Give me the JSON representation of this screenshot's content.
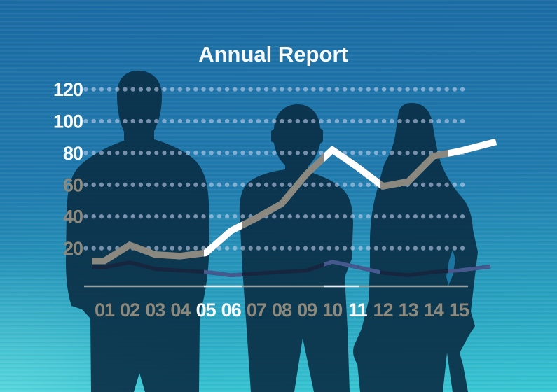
{
  "title": "Annual Report",
  "chart_data": {
    "type": "line",
    "title": "Annual Report",
    "categories": [
      "01",
      "02",
      "03",
      "04",
      "05",
      "06",
      "07",
      "08",
      "09",
      "10",
      "11",
      "12",
      "13",
      "14",
      "15"
    ],
    "x_highlight_white": [
      "05",
      "06",
      "11"
    ],
    "y_ticks": [
      20,
      40,
      60,
      80,
      100,
      120
    ],
    "y_ticks_white": [
      80,
      100,
      120
    ],
    "ylim": [
      0,
      130
    ],
    "grid": "dotted-horizontal-rows",
    "legend": "none",
    "series": [
      {
        "name": "main-growth-line",
        "values": [
          12,
          22,
          16,
          15,
          17,
          31,
          39,
          48,
          67,
          82,
          71,
          59,
          62,
          78,
          81
        ],
        "lead_value": 12,
        "end_value": 87,
        "thickness": "thick",
        "color_over_gap": "#ffffff",
        "color_over_figure": "#8b897f"
      },
      {
        "name": "secondary-flat-line",
        "values": [
          8,
          11,
          7,
          6,
          5,
          3,
          4,
          5,
          6,
          11.5,
          8,
          4.5,
          3,
          5,
          6
        ],
        "lead_value": 8,
        "end_value": 8.5,
        "thickness": "thin",
        "color_over_gap": "#46598e",
        "color_over_figure": "#17263f"
      }
    ]
  },
  "scene": {
    "figures": [
      {
        "name": "businessman-left"
      },
      {
        "name": "businessman-center"
      },
      {
        "name": "businesswoman-right"
      }
    ]
  },
  "colors": {
    "bg_top": "#1a6ba3",
    "bg_bottom": "#38c8d4",
    "silhouette": "#0a2e45",
    "dot": "rgba(198,211,237,0.58)",
    "label_gray": "#8d897c",
    "label_white": "#f7fafc",
    "axis_line": "#98a09e"
  }
}
